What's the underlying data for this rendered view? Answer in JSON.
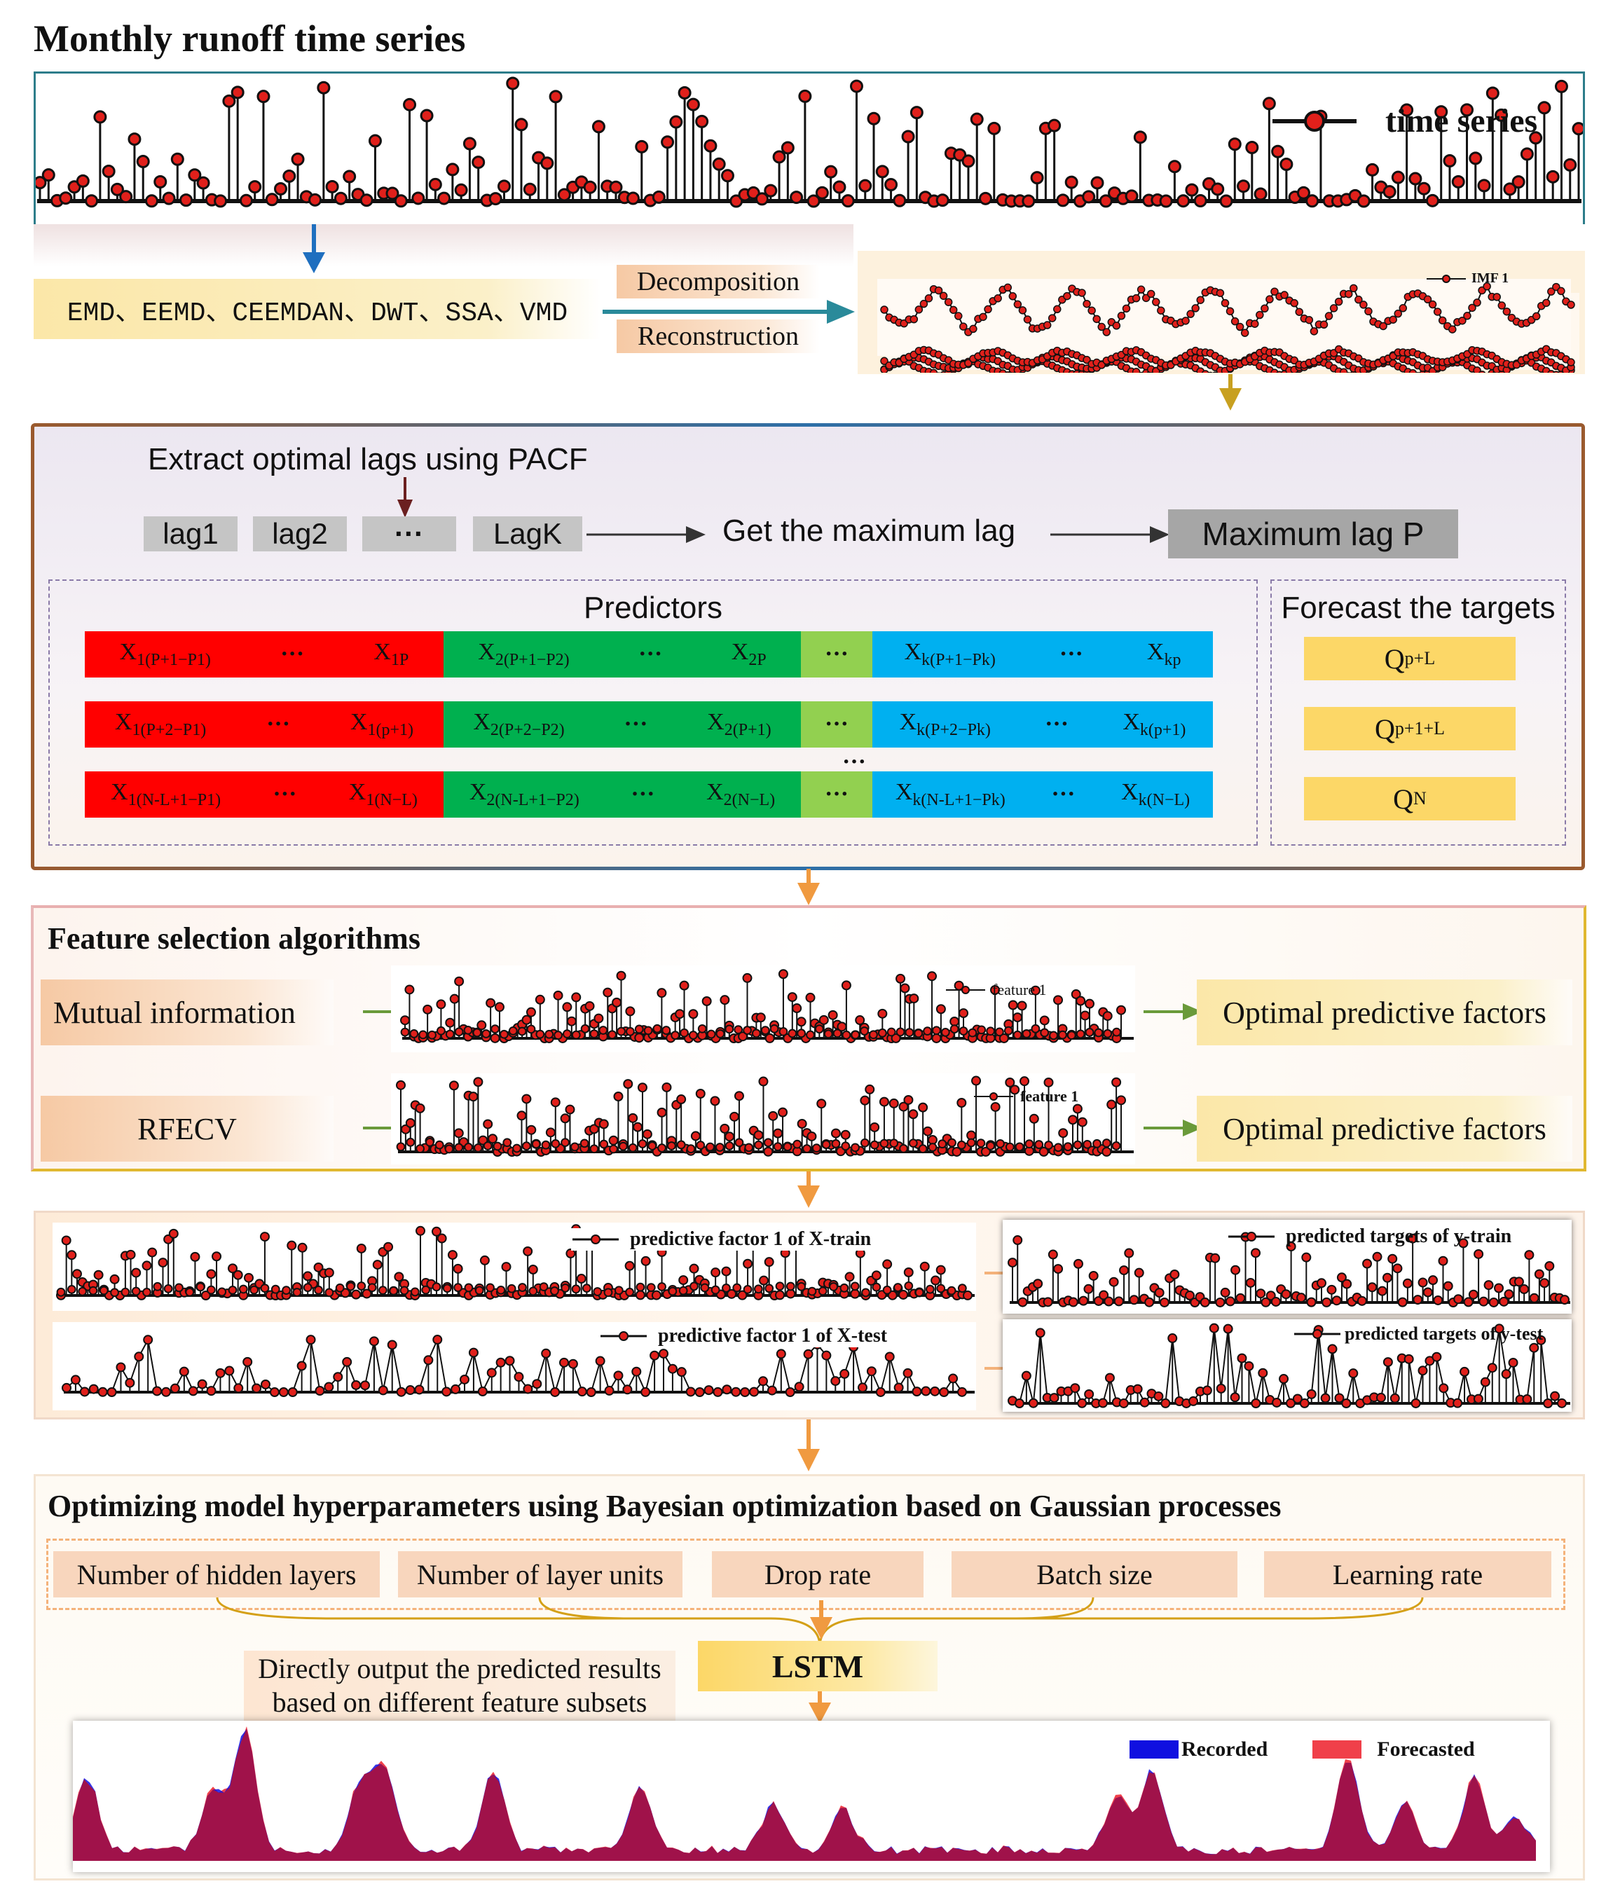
{
  "title": "Monthly runoff time series",
  "legend_time_series": "time series",
  "methods": "EMD、EEMD、CEEMDAN、DWT、SSA、VMD",
  "decomposition": "Decomposition",
  "reconstruction": "Reconstruction",
  "imf_legend": "IMF 1",
  "pacf": {
    "extract_label": "Extract optimal lags using PACF",
    "lags": [
      "lag1",
      "lag2",
      "···",
      "LagK"
    ],
    "get_max": "Get the maximum lag",
    "max_lag": "Maximum lag P",
    "predictors_title": "Predictors",
    "targets_title": "Forecast the targets",
    "rows": [
      {
        "red": [
          {
            "b": "X",
            "s": "1(P+1−P1)"
          },
          {
            "t": "···"
          },
          {
            "b": "X",
            "s": "1P"
          }
        ],
        "green": [
          {
            "b": "X",
            "s": "2(P+1−P2)"
          },
          {
            "t": "···"
          },
          {
            "b": "X",
            "s": "2P"
          }
        ],
        "blue": [
          {
            "b": "X",
            "s": "k(P+1−Pk)"
          },
          {
            "t": "···"
          },
          {
            "b": "X",
            "s": "kp"
          }
        ]
      },
      {
        "red": [
          {
            "b": "X",
            "s": "1(P+2−P1)"
          },
          {
            "t": "···"
          },
          {
            "b": "X",
            "s": "1(p+1)"
          }
        ],
        "green": [
          {
            "b": "X",
            "s": "2(P+2−P2)"
          },
          {
            "t": "···"
          },
          {
            "b": "X",
            "s": "2(P+1)"
          }
        ],
        "blue": [
          {
            "b": "X",
            "s": "k(P+2−Pk)"
          },
          {
            "t": "···"
          },
          {
            "b": "X",
            "s": "k(p+1)"
          }
        ]
      },
      {
        "red": [
          {
            "b": "X",
            "s": "1(N-L+1−P1)"
          },
          {
            "t": "···"
          },
          {
            "b": "X",
            "s": "1(N−L)"
          }
        ],
        "green": [
          {
            "b": "X",
            "s": "2(N-L+1−P2)"
          },
          {
            "t": "···"
          },
          {
            "b": "X",
            "s": "2(N−L)"
          }
        ],
        "blue": [
          {
            "b": "X",
            "s": "k(N-L+1−Pk)"
          },
          {
            "t": "···"
          },
          {
            "b": "X",
            "s": "k(N−L)"
          }
        ]
      }
    ],
    "middle_dots": "···",
    "row_gap_dots": "···",
    "targets": [
      {
        "b": "Q",
        "s": "p+L"
      },
      {
        "b": "Q",
        "s": "p+1+L"
      },
      {
        "b": "Q",
        "s": "N"
      }
    ]
  },
  "feature": {
    "title": "Feature selection algorithms",
    "methods": [
      "Mutual information",
      "RFECV"
    ],
    "legend": [
      "feature 1",
      "feature 1"
    ],
    "output": "Optimal predictive factors"
  },
  "split": {
    "x_train": "predictive factor 1 of X-train",
    "x_test": "predictive factor 1 of X-test",
    "y_train": "predicted targets of y-train",
    "y_test": "predicted targets of y-test"
  },
  "bayes": {
    "title": "Optimizing model hyperparameters using Bayesian optimization based on Gaussian processes",
    "params": [
      "Number of hidden layers",
      "Number of layer units",
      "Drop rate",
      "Batch size",
      "Learning rate"
    ],
    "lstm": "LSTM",
    "output_line1": "Directly output the predicted results",
    "output_line2": "based on different feature subsets",
    "legend": [
      "Recorded",
      "Forecasted"
    ]
  },
  "colors": {
    "marker_red": "#e0201b",
    "series_black": "#111111",
    "recorded_blue": "#1010e0",
    "forecast_red": "#f0404a",
    "overlap": "#a0124a",
    "panel_brown": "#9a5a2e",
    "arrow_orange": "#f09a40",
    "arrow_green": "#6a9a3a",
    "arrow_blue": "#1f6fbf",
    "arrow_gold": "#c8a020"
  }
}
